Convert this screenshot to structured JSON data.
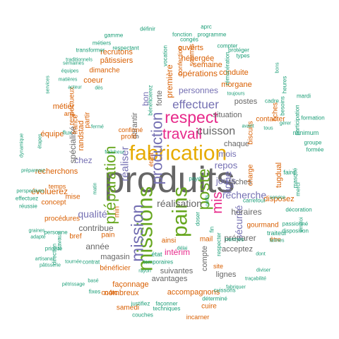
{
  "colors": {
    "gold": "#E6AB02",
    "gray": "#666666",
    "green": "#66A61E",
    "pink": "#E7298A",
    "purple": "#7570B3",
    "orange": "#D95F02",
    "teal": "#1B9E77",
    "brown": "#A6761D"
  },
  "words": [
    {
      "text": "produits",
      "color": "gray"
    },
    {
      "text": "fabrication",
      "color": "gold"
    },
    {
      "text": "missions",
      "color": "green"
    },
    {
      "text": "pains",
      "color": "green"
    },
    {
      "text": "poste",
      "color": "green"
    },
    {
      "text": "préparation",
      "color": "green"
    },
    {
      "text": "mission",
      "color": "purple"
    },
    {
      "text": "production",
      "color": "purple"
    },
    {
      "text": "respect",
      "color": "pink"
    },
    {
      "text": "travail",
      "color": "pink"
    },
    {
      "text": "mis",
      "color": "pink"
    },
    {
      "text": "effectuer",
      "color": "purple"
    },
    {
      "text": "cuisson",
      "color": "gray"
    },
    {
      "text": "réalisation",
      "color": "gray"
    },
    {
      "text": "ligne",
      "color": "purple"
    },
    {
      "text": "sécurité",
      "color": "purple"
    },
    {
      "text": "recherche",
      "color": "purple"
    },
    {
      "text": "qualité",
      "color": "purple"
    },
    {
      "text": "réaliser",
      "color": "purple"
    },
    {
      "text": "personnes",
      "color": "purple"
    },
    {
      "text": "bon",
      "color": "purple"
    },
    {
      "text": "jours",
      "color": "purple"
    },
    {
      "text": "repos",
      "color": "purple"
    },
    {
      "text": "mois",
      "color": "purple"
    },
    {
      "text": "chez",
      "color": "purple"
    },
    {
      "text": "contribue",
      "color": "gray"
    },
    {
      "text": "intérim",
      "color": "pink"
    },
    {
      "text": "spécialisé",
      "color": "gray"
    },
    {
      "text": "garantir",
      "color": "gray"
    },
    {
      "text": "année",
      "color": "gray"
    },
    {
      "text": "tâches",
      "color": "gray"
    },
    {
      "text": "situation",
      "color": "gray"
    },
    {
      "text": "forte",
      "color": "gray"
    },
    {
      "text": "préparer",
      "color": "gray"
    },
    {
      "text": "avantages",
      "color": "gray"
    },
    {
      "text": "suivantes",
      "color": "gray"
    },
    {
      "text": "horaires",
      "color": "gray"
    },
    {
      "text": "lignes",
      "color": "gray"
    },
    {
      "text": "compte",
      "color": "gray"
    },
    {
      "text": "acceptez",
      "color": "gray"
    },
    {
      "text": "postes",
      "color": "gray"
    },
    {
      "text": "chaque",
      "color": "gray"
    },
    {
      "text": "magasin",
      "color": "gray"
    },
    {
      "text": "opérations",
      "color": "orange"
    },
    {
      "text": "semaine",
      "color": "orange"
    },
    {
      "text": "conduite",
      "color": "orange"
    },
    {
      "text": "morgane",
      "color": "orange"
    },
    {
      "text": "ouverts",
      "color": "orange"
    },
    {
      "text": "hébergée",
      "color": "orange"
    },
    {
      "text": "première",
      "color": "orange"
    },
    {
      "text": "confection",
      "color": "orange"
    },
    {
      "text": "soumis",
      "color": "orange"
    },
    {
      "text": "pâtissiers",
      "color": "orange"
    },
    {
      "text": "recrutons",
      "color": "orange"
    },
    {
      "text": "dimanche",
      "color": "orange"
    },
    {
      "text": "coeur",
      "color": "orange"
    },
    {
      "text": "respectueux",
      "color": "orange"
    },
    {
      "text": "métier",
      "color": "orange"
    },
    {
      "text": "randstad",
      "color": "orange"
    },
    {
      "text": "france",
      "color": "orange"
    },
    {
      "text": "équipe",
      "color": "orange"
    },
    {
      "text": "évoluerez",
      "color": "orange"
    },
    {
      "text": "recherchons",
      "color": "orange"
    },
    {
      "text": "concept",
      "color": "orange"
    },
    {
      "text": "mise",
      "color": "orange"
    },
    {
      "text": "bref",
      "color": "orange"
    },
    {
      "text": "pain",
      "color": "orange"
    },
    {
      "text": "bénéficier",
      "color": "orange"
    },
    {
      "text": "façonnage",
      "color": "orange"
    },
    {
      "text": "nombreux",
      "color": "orange"
    },
    {
      "text": "accompagnons",
      "color": "orange"
    },
    {
      "text": "ainsi",
      "color": "orange"
    },
    {
      "text": "gourmand",
      "color": "orange"
    },
    {
      "text": "disposez",
      "color": "orange"
    },
    {
      "text": "charge",
      "color": "orange"
    },
    {
      "text": "tugdual",
      "color": "orange"
    },
    {
      "text": "contacter",
      "color": "orange"
    },
    {
      "text": "fiches",
      "color": "orange"
    },
    {
      "text": "biscuits",
      "color": "orange"
    },
    {
      "text": "mail",
      "color": "orange"
    },
    {
      "text": "min",
      "color": "orange"
    },
    {
      "text": "site",
      "color": "orange"
    },
    {
      "text": "cc4tc",
      "color": "orange"
    },
    {
      "text": "samedi",
      "color": "orange"
    },
    {
      "text": "cuire",
      "color": "orange"
    },
    {
      "text": "incarner",
      "color": "orange"
    },
    {
      "text": "procédures",
      "color": "orange"
    },
    {
      "text": "temps",
      "color": "orange"
    },
    {
      "text": "partir",
      "color": "orange"
    },
    {
      "text": "étant",
      "color": "orange"
    },
    {
      "text": "confirmé",
      "color": "orange"
    },
    {
      "text": "ans",
      "color": "orange"
    },
    {
      "text": "profil",
      "color": "orange"
    },
    {
      "text": "être",
      "color": "orange"
    },
    {
      "text": "traiteur",
      "color": "teal"
    },
    {
      "text": "carrefour",
      "color": "teal"
    },
    {
      "text": "faire",
      "color": "teal"
    },
    {
      "text": "minimum",
      "color": "teal"
    },
    {
      "text": "participation",
      "color": "teal"
    },
    {
      "text": "cadre",
      "color": "teal"
    },
    {
      "text": "définir",
      "color": "teal"
    },
    {
      "text": "aprc",
      "color": "teal"
    },
    {
      "text": "programme",
      "color": "teal"
    },
    {
      "text": "compter",
      "color": "teal"
    },
    {
      "text": "protéger",
      "color": "teal"
    },
    {
      "text": "types",
      "color": "teal"
    },
    {
      "text": "fonction",
      "color": "teal"
    },
    {
      "text": "gamme",
      "color": "teal"
    },
    {
      "text": "métiers",
      "color": "teal"
    },
    {
      "text": "transformer",
      "color": "teal"
    },
    {
      "text": "traditionnels",
      "color": "teal"
    },
    {
      "text": "semaines",
      "color": "teal"
    },
    {
      "text": "équipes",
      "color": "teal"
    },
    {
      "text": "matières",
      "color": "teal"
    },
    {
      "text": "acteur",
      "color": "teal"
    },
    {
      "text": "bénéficierez",
      "color": "teal"
    },
    {
      "text": "toujours",
      "color": "teal"
    },
    {
      "text": "mardi",
      "color": "teal"
    },
    {
      "text": "formation",
      "color": "teal"
    },
    {
      "text": "groupe",
      "color": "teal"
    },
    {
      "text": "formée",
      "color": "teal"
    },
    {
      "text": "étapes",
      "color": "teal"
    },
    {
      "text": "préparerez",
      "color": "teal"
    },
    {
      "text": "perspectives",
      "color": "teal"
    },
    {
      "text": "effectuez",
      "color": "teal"
    },
    {
      "text": "réussie",
      "color": "teal"
    },
    {
      "text": "graines",
      "color": "teal"
    },
    {
      "text": "adapté",
      "color": "teal"
    },
    {
      "text": "personne",
      "color": "teal"
    },
    {
      "text": "priorité",
      "color": "teal"
    },
    {
      "text": "artisanal",
      "color": "teal"
    },
    {
      "text": "pâtisserie",
      "color": "teal"
    },
    {
      "text": "pétrissage",
      "color": "teal"
    },
    {
      "text": "fixes",
      "color": "teal"
    },
    {
      "text": "justifiez",
      "color": "teal"
    },
    {
      "text": "couches",
      "color": "teal"
    },
    {
      "text": "façonner",
      "color": "teal"
    },
    {
      "text": "techniques",
      "color": "teal"
    },
    {
      "text": "déterminé",
      "color": "teal"
    },
    {
      "text": "cuissons",
      "color": "teal"
    },
    {
      "text": "fabriquer",
      "color": "teal"
    },
    {
      "text": "traçabilité",
      "color": "teal"
    },
    {
      "text": "diviser",
      "color": "teal"
    },
    {
      "text": "dont",
      "color": "teal"
    },
    {
      "text": "farines",
      "color": "teal"
    },
    {
      "text": "normes",
      "color": "teal"
    },
    {
      "text": "rayon",
      "color": "teal"
    },
    {
      "text": "contrat",
      "color": "teal"
    },
    {
      "text": "basé",
      "color": "teal"
    },
    {
      "text": "tournée",
      "color": "teal"
    },
    {
      "text": "matin",
      "color": "teal"
    },
    {
      "text": "fermé",
      "color": "teal"
    },
    {
      "text": "flux",
      "color": "teal"
    },
    {
      "text": "fraîcheur",
      "color": "teal"
    },
    {
      "text": "gérer",
      "color": "teal"
    },
    {
      "text": "tous",
      "color": "teal"
    },
    {
      "text": "avant",
      "color": "teal"
    },
    {
      "text": "bons",
      "color": "teal"
    },
    {
      "text": "heures",
      "color": "teal"
    },
    {
      "text": "besoins",
      "color": "teal"
    },
    {
      "text": "masqué",
      "color": "teal"
    },
    {
      "text": "merci",
      "color": "teal"
    },
    {
      "text": "passionné",
      "color": "teal"
    },
    {
      "text": "disposition",
      "color": "teal"
    },
    {
      "text": "décoration",
      "color": "teal"
    },
    {
      "text": "emploi",
      "color": "teal"
    },
    {
      "text": "service",
      "color": "teal"
    },
    {
      "text": "services",
      "color": "teal"
    },
    {
      "text": "dynamique",
      "color": "teal"
    },
    {
      "text": "direction",
      "color": "teal"
    },
    {
      "text": "travaux",
      "color": "teal"
    },
    {
      "text": "respectant",
      "color": "teal"
    },
    {
      "text": "vocation",
      "color": "teal"
    },
    {
      "text": "temporaires",
      "color": "teal"
    },
    {
      "text": "outils",
      "color": "teal"
    },
    {
      "text": "délai",
      "color": "teal"
    },
    {
      "text": "état",
      "color": "teal"
    },
    {
      "text": "congés",
      "color": "teal"
    },
    {
      "text": "dès",
      "color": "teal"
    },
    {
      "text": "doser",
      "color": "teal"
    },
    {
      "text": "payé",
      "color": "teal"
    },
    {
      "text": "fin",
      "color": "teal"
    },
    {
      "text": "respecter",
      "color": "teal"
    },
    {
      "text": "rémunération",
      "color": "teal"
    },
    {
      "text": "diverses",
      "color": "teal"
    },
    {
      "text": "fabrique",
      "color": "teal"
    },
    {
      "text": "avez",
      "color": "teal"
    },
    {
      "text": "déplacements",
      "color": "teal"
    },
    {
      "text": "aide",
      "color": "teal"
    }
  ]
}
